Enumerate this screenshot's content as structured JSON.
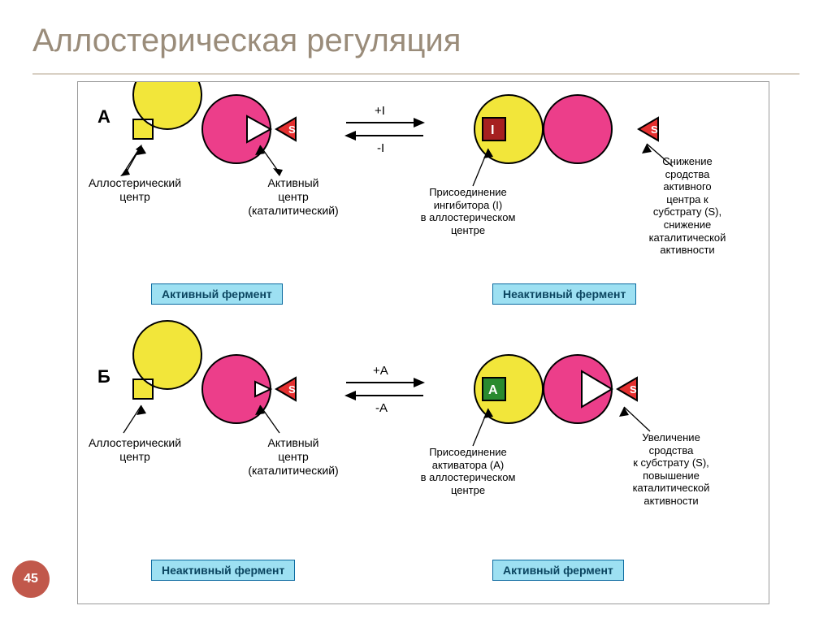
{
  "title": "Аллостерическая регуляция",
  "page_number": "45",
  "colors": {
    "allosteric_circle": "#f2e63a",
    "active_circle": "#ec3e8a",
    "substrate_triangle_fill": "#e53030",
    "inhibitor_fill": "#a62020",
    "activator_fill": "#2a8a2f",
    "box_bg": "#9de0f2",
    "box_border": "#0b6aa0",
    "arrow": "#000000",
    "stroke": "#000000"
  },
  "row_a": {
    "letter": "А",
    "left_allosteric_label": "Аллостерический\nцентр",
    "left_active_label": "Активный\nцентр\n(каталитический)",
    "arrow_top": "+I",
    "arrow_bottom": "-I",
    "middle_label": "Присоединение\nингибитора (I)\nв аллостерическом\nцентре",
    "right_label": "Снижение\nсродства\nактивного\nцентра к\nсубстрату (S),\nснижение\nкаталитической\nактивности",
    "inhibitor_letter": "I",
    "substrate_letter": "S",
    "left_box": "Активный фермент",
    "right_box": "Неактивный фермент"
  },
  "row_b": {
    "letter": "Б",
    "left_allosteric_label": "Аллостерический\nцентр",
    "left_active_label": "Активный\nцентр\n(каталитический)",
    "arrow_top": "+A",
    "arrow_bottom": "-A",
    "middle_label": "Присоединение\nактиватора (A)\nв аллостерическом\nцентре",
    "right_label": "Увеличение\nсродства\nк субстрату (S),\nповышение\nкаталитической\nактивности",
    "activator_letter": "А",
    "substrate_letter": "S",
    "left_box": "Неактивный фермент",
    "right_box": "Активный фермент"
  }
}
